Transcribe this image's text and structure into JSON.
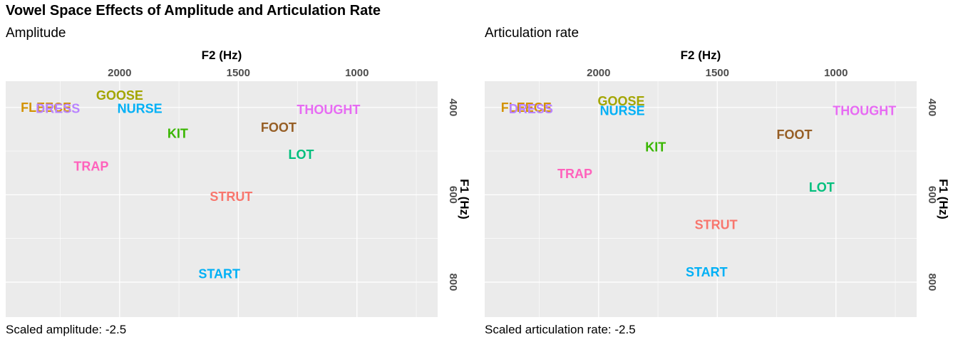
{
  "title": "Vowel Space Effects of Amplitude and Articulation Rate",
  "chart_data": [
    {
      "type": "scatter",
      "title": "Amplitude",
      "caption": "Scaled amplitude: -2.5",
      "xlabel": "F2 (Hz)",
      "ylabel": "F1 (Hz)",
      "x_axis_position": "top",
      "y_axis_position": "right",
      "x_reversed": true,
      "y_reversed": true,
      "xlim": [
        2480,
        660
      ],
      "ylim": [
        340,
        880
      ],
      "x_ticks": [
        2000,
        1500,
        1000
      ],
      "y_ticks": [
        400,
        600,
        800
      ],
      "grid": true,
      "background": "#ebebeb",
      "points": [
        {
          "label": "FLEECE",
          "x": 2310,
          "y": 400,
          "color": "#D39200"
        },
        {
          "label": "DRESS",
          "x": 2260,
          "y": 403,
          "color": "#B983FF"
        },
        {
          "label": "GOOSE",
          "x": 2000,
          "y": 373,
          "color": "#A3A500"
        },
        {
          "label": "NURSE",
          "x": 1915,
          "y": 403,
          "color": "#00B0F6"
        },
        {
          "label": "KIT",
          "x": 1755,
          "y": 460,
          "color": "#39B600"
        },
        {
          "label": "TRAP",
          "x": 2120,
          "y": 535,
          "color": "#FF62BC"
        },
        {
          "label": "STRUT",
          "x": 1530,
          "y": 604,
          "color": "#F8766D"
        },
        {
          "label": "START",
          "x": 1580,
          "y": 781,
          "color": "#00B0F6"
        },
        {
          "label": "FOOT",
          "x": 1330,
          "y": 446,
          "color": "#965E25"
        },
        {
          "label": "THOUGHT",
          "x": 1120,
          "y": 405,
          "color": "#E76BF3"
        },
        {
          "label": "LOT",
          "x": 1235,
          "y": 508,
          "color": "#00BF7D"
        }
      ]
    },
    {
      "type": "scatter",
      "title": "Articulation rate",
      "caption": "Scaled articulation rate: -2.5",
      "xlabel": "F2 (Hz)",
      "ylabel": "F1 (Hz)",
      "x_axis_position": "top",
      "y_axis_position": "right",
      "x_reversed": true,
      "y_reversed": true,
      "xlim": [
        2480,
        660
      ],
      "ylim": [
        340,
        880
      ],
      "x_ticks": [
        2000,
        1500,
        1000
      ],
      "y_ticks": [
        400,
        600,
        800
      ],
      "grid": true,
      "background": "#ebebeb",
      "points": [
        {
          "label": "FLEECE",
          "x": 2305,
          "y": 400,
          "color": "#D39200"
        },
        {
          "label": "DRESS",
          "x": 2285,
          "y": 404,
          "color": "#B983FF"
        },
        {
          "label": "GOOSE",
          "x": 1905,
          "y": 386,
          "color": "#A3A500"
        },
        {
          "label": "NURSE",
          "x": 1900,
          "y": 408,
          "color": "#00B0F6"
        },
        {
          "label": "KIT",
          "x": 1760,
          "y": 491,
          "color": "#39B600"
        },
        {
          "label": "TRAP",
          "x": 2100,
          "y": 552,
          "color": "#FF62BC"
        },
        {
          "label": "STRUT",
          "x": 1505,
          "y": 669,
          "color": "#F8766D"
        },
        {
          "label": "START",
          "x": 1545,
          "y": 777,
          "color": "#00B0F6"
        },
        {
          "label": "FOOT",
          "x": 1175,
          "y": 462,
          "color": "#965E25"
        },
        {
          "label": "THOUGHT",
          "x": 880,
          "y": 408,
          "color": "#E76BF3"
        },
        {
          "label": "LOT",
          "x": 1060,
          "y": 583,
          "color": "#00BF7D"
        }
      ]
    }
  ]
}
